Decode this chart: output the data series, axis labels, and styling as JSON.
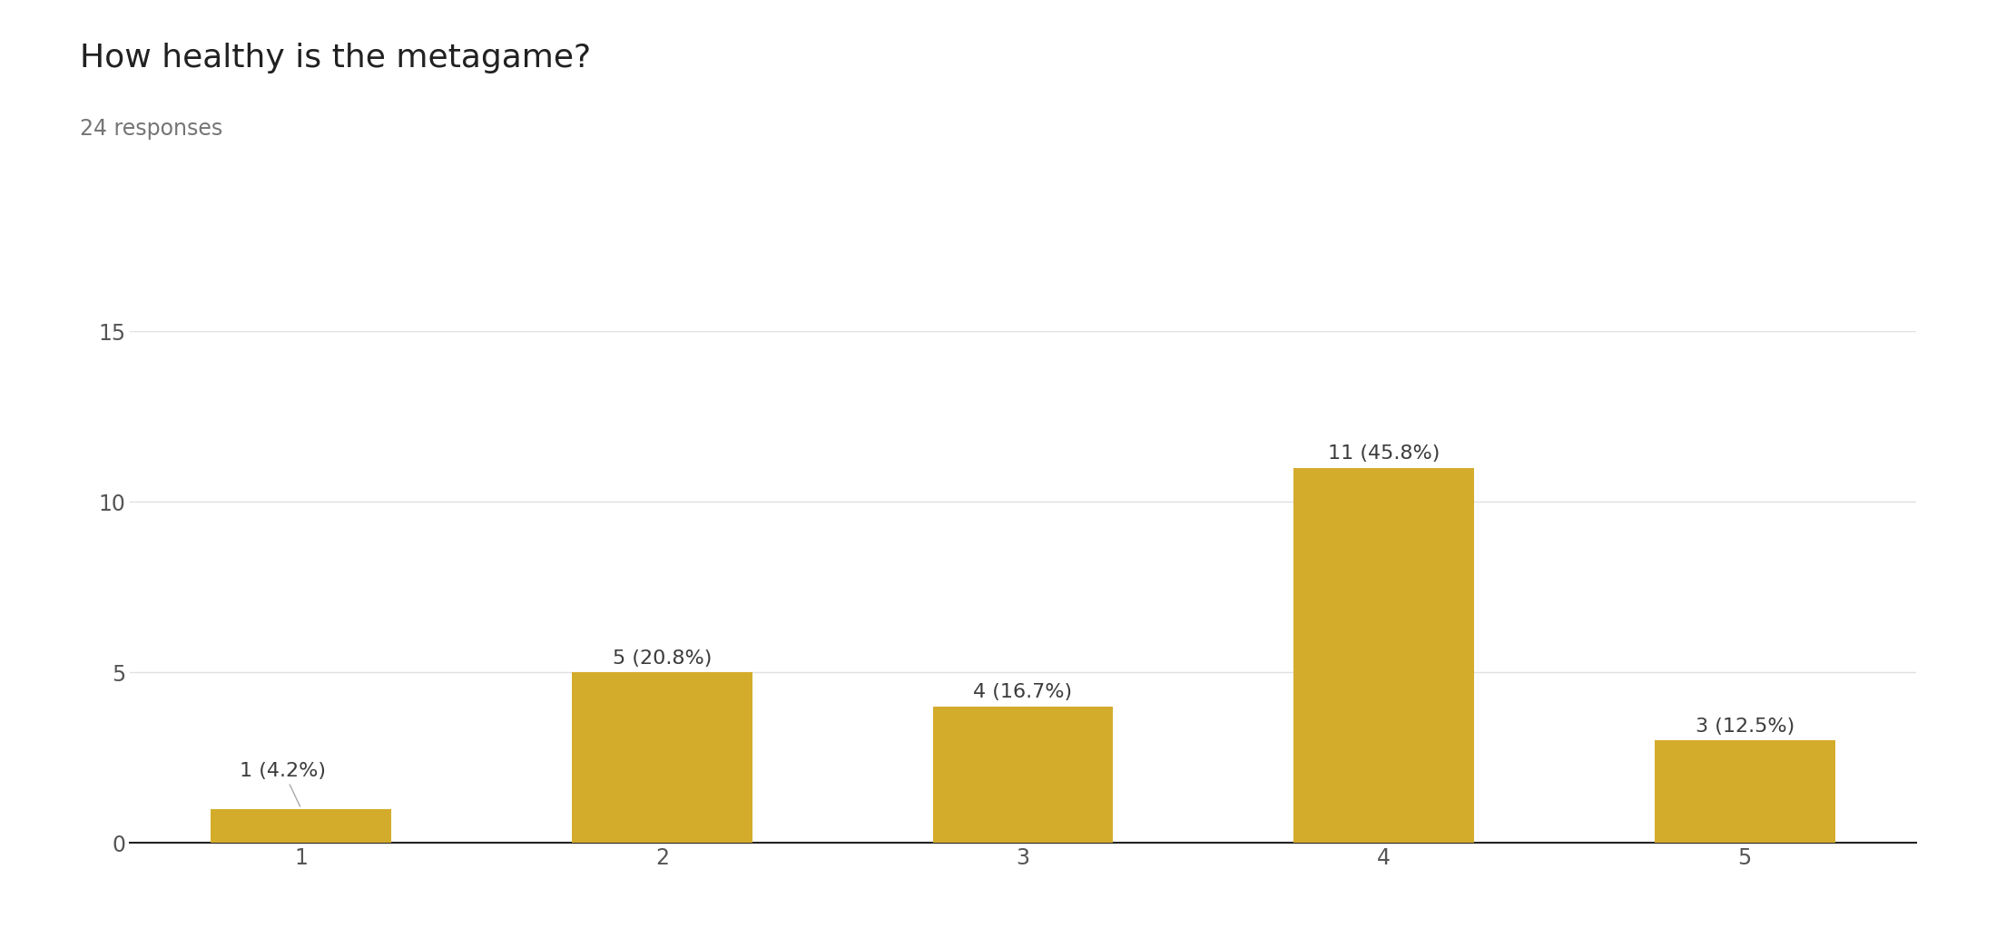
{
  "title": "How healthy is the metagame?",
  "subtitle": "24 responses",
  "categories": [
    1,
    2,
    3,
    4,
    5
  ],
  "values": [
    1,
    5,
    4,
    11,
    3
  ],
  "labels": [
    "1 (4.2%)",
    "5 (20.8%)",
    "4 (16.7%)",
    "11 (45.8%)",
    "3 (12.5%)"
  ],
  "bar_color": "#D4AC2B",
  "background_color": "#ffffff",
  "ylim": [
    0,
    15
  ],
  "yticks": [
    0,
    5,
    10,
    15
  ],
  "title_fontsize": 26,
  "subtitle_fontsize": 17,
  "tick_fontsize": 17,
  "label_fontsize": 16,
  "label_color": "#3c3c3c",
  "axis_color": "#555555",
  "grid_color": "#e0e0e0",
  "title_color": "#212121",
  "subtitle_color": "#757575"
}
